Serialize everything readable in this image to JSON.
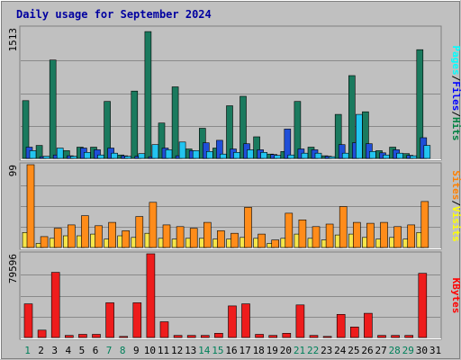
{
  "chart_data": [
    {
      "type": "bar",
      "title": "Daily usage for September 2024",
      "ymax_label": "1513",
      "ylim": [
        0,
        1513
      ],
      "legend": [
        {
          "name": "Pages",
          "color": "#00ffff"
        },
        {
          "name": "Files",
          "color": "#0000ff"
        },
        {
          "name": "Hits",
          "color": "#008040"
        }
      ],
      "separator": "/",
      "x": [
        "1",
        "2",
        "3",
        "4",
        "5",
        "6",
        "7",
        "8",
        "9",
        "10",
        "11",
        "12",
        "13",
        "14",
        "15",
        "16",
        "17",
        "18",
        "19",
        "20",
        "21",
        "22",
        "23",
        "24",
        "25",
        "26",
        "27",
        "28",
        "29",
        "30",
        "31"
      ],
      "weekend_days": [
        "1",
        "7",
        "8",
        "14",
        "15",
        "21",
        "22",
        "28",
        "29"
      ],
      "series": [
        {
          "name": "Hits",
          "color": "#1a7a5e",
          "values": [
            670,
            150,
            1140,
            90,
            130,
            130,
            660,
            40,
            780,
            1470,
            410,
            830,
            110,
            350,
            120,
            610,
            720,
            250,
            50,
            80,
            660,
            130,
            30,
            510,
            960,
            540,
            90,
            130,
            55,
            1260,
            0
          ]
        },
        {
          "name": "Files",
          "color": "#1f4fd8",
          "values": [
            130,
            20,
            40,
            30,
            120,
            100,
            120,
            30,
            25,
            20,
            120,
            30,
            90,
            180,
            210,
            110,
            170,
            100,
            45,
            340,
            110,
            100,
            25,
            160,
            180,
            170,
            65,
            100,
            35,
            240,
            0
          ]
        },
        {
          "name": "Pages",
          "color": "#22c4f0",
          "values": [
            90,
            25,
            120,
            25,
            70,
            40,
            60,
            25,
            55,
            160,
            100,
            190,
            90,
            80,
            50,
            70,
            100,
            70,
            35,
            40,
            60,
            60,
            20,
            60,
            510,
            80,
            40,
            60,
            30,
            150,
            0
          ]
        }
      ]
    },
    {
      "type": "bar",
      "ymax_label": "99",
      "ylim": [
        0,
        99
      ],
      "legend": [
        {
          "name": "Sites",
          "color": "#ff8000"
        },
        {
          "name": "Visits",
          "color": "#ffff00"
        }
      ],
      "separator": "/",
      "x": [
        "1",
        "2",
        "3",
        "4",
        "5",
        "6",
        "7",
        "8",
        "9",
        "10",
        "11",
        "12",
        "13",
        "14",
        "15",
        "16",
        "17",
        "18",
        "19",
        "20",
        "21",
        "22",
        "23",
        "24",
        "25",
        "26",
        "27",
        "28",
        "29",
        "30",
        "31"
      ],
      "series": [
        {
          "name": "Visits",
          "color": "#f5e64a",
          "values": [
            18,
            5,
            11,
            14,
            14,
            16,
            10,
            14,
            12,
            17,
            11,
            10,
            11,
            11,
            10,
            10,
            12,
            11,
            5,
            11,
            16,
            11,
            9,
            15,
            16,
            12,
            10,
            12,
            10,
            18,
            0
          ]
        },
        {
          "name": "Sites",
          "color": "#ff8c1a",
          "values": [
            99,
            13,
            23,
            27,
            38,
            26,
            30,
            20,
            37,
            54,
            27,
            25,
            23,
            30,
            20,
            17,
            48,
            16,
            9,
            41,
            33,
            25,
            28,
            49,
            30,
            29,
            30,
            25,
            27,
            55,
            0
          ]
        }
      ]
    },
    {
      "type": "bar",
      "ymax_label": "79596",
      "ylim": [
        0,
        79596
      ],
      "legend": [
        {
          "name": "KBytes",
          "color": "#ff0000"
        }
      ],
      "x": [
        "1",
        "2",
        "3",
        "4",
        "5",
        "6",
        "7",
        "8",
        "9",
        "10",
        "11",
        "12",
        "13",
        "14",
        "15",
        "16",
        "17",
        "18",
        "19",
        "20",
        "21",
        "22",
        "23",
        "24",
        "25",
        "26",
        "27",
        "28",
        "29",
        "30",
        "31"
      ],
      "series": [
        {
          "name": "KBytes",
          "color": "#ee1c1c",
          "values": [
            32000,
            7000,
            62000,
            2000,
            3000,
            3000,
            33000,
            1000,
            33000,
            79596,
            15000,
            2000,
            2000,
            2000,
            4000,
            30000,
            32000,
            3000,
            2000,
            4000,
            31000,
            2000,
            1000,
            22000,
            10000,
            23000,
            2000,
            2000,
            2000,
            61000,
            0
          ]
        }
      ]
    }
  ]
}
